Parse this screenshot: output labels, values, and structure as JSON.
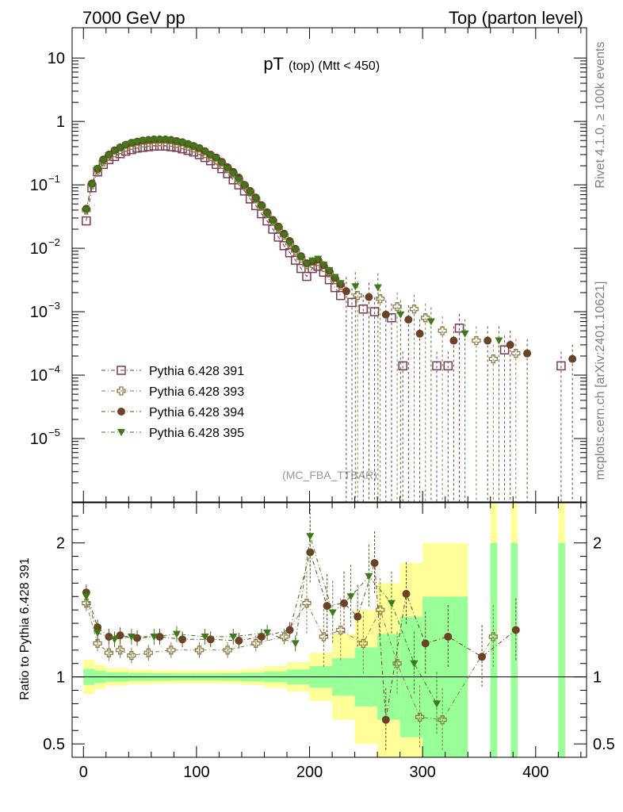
{
  "header": {
    "left": "7000 GeV pp",
    "right": "Top (parton level)"
  },
  "side_labels": {
    "rivet": "Rivet 4.1.0, ≥ 100k events",
    "mcplots": "mcplots.cern.ch [arXiv:2401.10621]"
  },
  "chart_data": [
    {
      "type": "scatter",
      "title_main": "pT",
      "title_sub": "(top) (Mtt < 450)",
      "watermark": "(MC_FBA_TTBAR)",
      "yscale": "log",
      "xlim": [
        -10,
        445
      ],
      "ylim": [
        1e-06,
        30
      ],
      "y_ticks": [
        {
          "value": 10,
          "label": "10"
        },
        {
          "value": 1,
          "label": "1"
        },
        {
          "value": 0.1,
          "base": "10",
          "exp": "−1"
        },
        {
          "value": 0.01,
          "base": "10",
          "exp": "−2"
        },
        {
          "value": 0.001,
          "base": "10",
          "exp": "−3"
        },
        {
          "value": 0.0001,
          "base": "10",
          "exp": "−4"
        },
        {
          "value": 1e-05,
          "base": "10",
          "exp": "−5"
        }
      ],
      "x_centers": [
        2.5,
        7.5,
        12.5,
        17.5,
        22.5,
        27.5,
        32.5,
        37.5,
        42.5,
        47.5,
        52.5,
        57.5,
        62.5,
        67.5,
        72.5,
        77.5,
        82.5,
        87.5,
        92.5,
        97.5,
        102.5,
        107.5,
        112.5,
        117.5,
        122.5,
        127.5,
        132.5,
        137.5,
        142.5,
        147.5,
        152.5,
        157.5,
        162.5,
        167.5,
        172.5,
        177.5,
        182.5,
        187.5,
        192.5,
        197.5,
        202.5,
        207.5,
        212.5,
        217.5,
        222.5,
        227.5
      ],
      "series": [
        {
          "name": "Pythia 6.428 391",
          "marker": "open-square",
          "color": "#7a3a52",
          "values": [
            0.027,
            0.09,
            0.16,
            0.21,
            0.25,
            0.28,
            0.31,
            0.34,
            0.36,
            0.38,
            0.39,
            0.4,
            0.41,
            0.41,
            0.41,
            0.4,
            0.39,
            0.37,
            0.35,
            0.33,
            0.3,
            0.27,
            0.24,
            0.21,
            0.18,
            0.15,
            0.12,
            0.1,
            0.08,
            0.06,
            0.047,
            0.035,
            0.027,
            0.02,
            0.015,
            0.011,
            0.0085,
            0.0065,
            0.0048,
            0.0036,
            0.0048,
            0.0052,
            0.0042,
            0.0032,
            0.0024,
            0.0018
          ]
        },
        {
          "name": "Pythia 6.428 393",
          "marker": "open-cross",
          "color": "#8c7a45",
          "values": [
            0.04,
            0.1,
            0.17,
            0.23,
            0.28,
            0.32,
            0.36,
            0.39,
            0.42,
            0.44,
            0.46,
            0.47,
            0.48,
            0.48,
            0.48,
            0.47,
            0.45,
            0.43,
            0.41,
            0.38,
            0.35,
            0.31,
            0.28,
            0.25,
            0.21,
            0.18,
            0.15,
            0.12,
            0.097,
            0.077,
            0.06,
            0.046,
            0.035,
            0.027,
            0.021,
            0.016,
            0.012,
            0.0092,
            0.007,
            0.0055,
            0.0057,
            0.0062,
            0.005,
            0.0041,
            0.0032,
            0.0026
          ]
        },
        {
          "name": "Pythia 6.428 394",
          "marker": "filled-circle",
          "color": "#6b4226",
          "values": [
            0.042,
            0.105,
            0.18,
            0.25,
            0.3,
            0.35,
            0.39,
            0.43,
            0.46,
            0.48,
            0.5,
            0.51,
            0.52,
            0.52,
            0.52,
            0.51,
            0.49,
            0.47,
            0.44,
            0.41,
            0.38,
            0.34,
            0.3,
            0.27,
            0.23,
            0.19,
            0.16,
            0.13,
            0.1,
            0.08,
            0.063,
            0.048,
            0.037,
            0.028,
            0.022,
            0.017,
            0.013,
            0.0098,
            0.0075,
            0.0058,
            0.0062,
            0.0066,
            0.0054,
            0.0044,
            0.0034,
            0.0027
          ]
        },
        {
          "name": "Pythia 6.428 395",
          "marker": "filled-triangle-down",
          "color": "#3f7a1a",
          "values": [
            0.04,
            0.1,
            0.18,
            0.24,
            0.29,
            0.34,
            0.38,
            0.42,
            0.45,
            0.47,
            0.49,
            0.5,
            0.51,
            0.51,
            0.51,
            0.5,
            0.48,
            0.46,
            0.43,
            0.4,
            0.37,
            0.33,
            0.29,
            0.26,
            0.22,
            0.18,
            0.15,
            0.12,
            0.097,
            0.076,
            0.06,
            0.046,
            0.035,
            0.027,
            0.021,
            0.016,
            0.012,
            0.0094,
            0.0072,
            0.0056,
            0.0064,
            0.0068,
            0.0055,
            0.0045,
            0.0035,
            0.0028
          ]
        }
      ],
      "tail_points": [
        {
          "series": 0,
          "points": [
            [
              237.5,
              0.0014
            ],
            [
              247.5,
              0.0011
            ],
            [
              257.5,
              0.001
            ],
            [
              272.5,
              0.0008
            ],
            [
              282.5,
              0.00014
            ],
            [
              312.5,
              0.00014
            ],
            [
              322.5,
              0.00014
            ],
            [
              332.5,
              0.00055
            ],
            [
              372.5,
              0.00025
            ],
            [
              422.5,
              0.00014
            ]
          ]
        },
        {
          "series": 1,
          "points": [
            [
              242.5,
              0.0018
            ],
            [
              262.5,
              0.0016
            ],
            [
              277.5,
              0.0012
            ],
            [
              292.5,
              0.0011
            ],
            [
              302.5,
              0.0008
            ],
            [
              317.5,
              0.0005
            ],
            [
              347.5,
              0.00035
            ],
            [
              362.5,
              0.00018
            ],
            [
              382.5,
              0.00022
            ]
          ]
        },
        {
          "series": 2,
          "points": [
            [
              232.5,
              0.0021
            ],
            [
              252.5,
              0.0017
            ],
            [
              267.5,
              0.0009
            ],
            [
              287.5,
              0.00075
            ],
            [
              297.5,
              0.00045
            ],
            [
              327.5,
              0.00035
            ],
            [
              357.5,
              0.00035
            ],
            [
              377.5,
              0.0003
            ],
            [
              392.5,
              0.00022
            ],
            [
              432.5,
              0.00018
            ]
          ]
        },
        {
          "series": 3,
          "points": [
            [
              240.5,
              0.0025
            ],
            [
              260.5,
              0.0024
            ],
            [
              280.5,
              0.0009
            ],
            [
              307.5,
              0.0007
            ],
            [
              337.5,
              0.00045
            ],
            [
              367.5,
              0.00035
            ]
          ]
        }
      ]
    },
    {
      "type": "scatter",
      "ylabel": "Ratio to Pythia 6.428 391",
      "ylim": [
        0.4,
        2.3
      ],
      "y_ticks": [
        {
          "value": 0.5,
          "label": "0.5"
        },
        {
          "value": 1,
          "label": "1"
        },
        {
          "value": 2,
          "label": "2"
        }
      ],
      "x_ticks": [
        {
          "value": 0,
          "label": "0"
        },
        {
          "value": 100,
          "label": "100"
        },
        {
          "value": 200,
          "label": "200"
        },
        {
          "value": 300,
          "label": "300"
        },
        {
          "value": 400,
          "label": "400"
        }
      ],
      "band_colors": {
        "outer": "#ffff99",
        "inner": "#99ff99"
      },
      "band_edges": [
        0,
        10,
        20,
        40,
        60,
        80,
        100,
        120,
        140,
        160,
        180,
        200,
        220,
        240,
        260,
        280,
        300,
        340
      ],
      "band_inner_half": [
        0.06,
        0.045,
        0.035,
        0.03,
        0.028,
        0.026,
        0.026,
        0.028,
        0.032,
        0.04,
        0.055,
        0.08,
        0.14,
        0.22,
        0.32,
        0.45,
        0.6
      ],
      "band_outer_half": [
        0.13,
        0.09,
        0.065,
        0.055,
        0.05,
        0.048,
        0.048,
        0.05,
        0.06,
        0.08,
        0.11,
        0.18,
        0.32,
        0.5,
        0.7,
        0.85,
        1.0
      ],
      "series": [
        {
          "series": 1,
          "points": [
            [
              2.5,
              1.55
            ],
            [
              12.5,
              1.25
            ],
            [
              22.5,
              1.18
            ],
            [
              32.5,
              1.2
            ],
            [
              42.5,
              1.16
            ],
            [
              57.5,
              1.18
            ],
            [
              77.5,
              1.2
            ],
            [
              102.5,
              1.2
            ],
            [
              127.5,
              1.2
            ],
            [
              152.5,
              1.25
            ],
            [
              177.5,
              1.3
            ],
            [
              197.5,
              1.55
            ],
            [
              212.5,
              1.3
            ],
            [
              227.5,
              1.35
            ],
            [
              247.5,
              1.25
            ],
            [
              262.5,
              1.5
            ],
            [
              277.5,
              1.1
            ],
            [
              297.5,
              0.7
            ],
            [
              317.5,
              0.68
            ],
            [
              362.5,
              1.3
            ]
          ]
        },
        {
          "series": 2,
          "points": [
            [
              2.5,
              1.63
            ],
            [
              12.5,
              1.37
            ],
            [
              22.5,
              1.3
            ],
            [
              32.5,
              1.31
            ],
            [
              47.5,
              1.29
            ],
            [
              67.5,
              1.3
            ],
            [
              87.5,
              1.28
            ],
            [
              112.5,
              1.28
            ],
            [
              137.5,
              1.27
            ],
            [
              157.5,
              1.3
            ],
            [
              182.5,
              1.35
            ],
            [
              200.5,
              1.93
            ],
            [
              215.5,
              1.53
            ],
            [
              230.5,
              1.55
            ],
            [
              242.5,
              1.45
            ],
            [
              257.5,
              1.85
            ],
            [
              267.5,
              0.68
            ],
            [
              285.5,
              1.62
            ],
            [
              302.5,
              1.25
            ],
            [
              322.5,
              1.3
            ],
            [
              352.5,
              1.15
            ],
            [
              382.5,
              1.35
            ]
          ]
        },
        {
          "series": 3,
          "points": [
            [
              2.5,
              1.6
            ],
            [
              12.5,
              1.33
            ],
            [
              27.5,
              1.28
            ],
            [
              42.5,
              1.3
            ],
            [
              62.5,
              1.3
            ],
            [
              82.5,
              1.32
            ],
            [
              107.5,
              1.3
            ],
            [
              132.5,
              1.3
            ],
            [
              162.5,
              1.33
            ],
            [
              187.5,
              1.25
            ],
            [
              200.5,
              2.05
            ],
            [
              220.5,
              1.48
            ],
            [
              236.5,
              1.6
            ],
            [
              252.5,
              1.75
            ],
            [
              272.5,
              1.55
            ],
            [
              292.5,
              1.1
            ],
            [
              312.5,
              0.8
            ]
          ]
        }
      ]
    }
  ]
}
